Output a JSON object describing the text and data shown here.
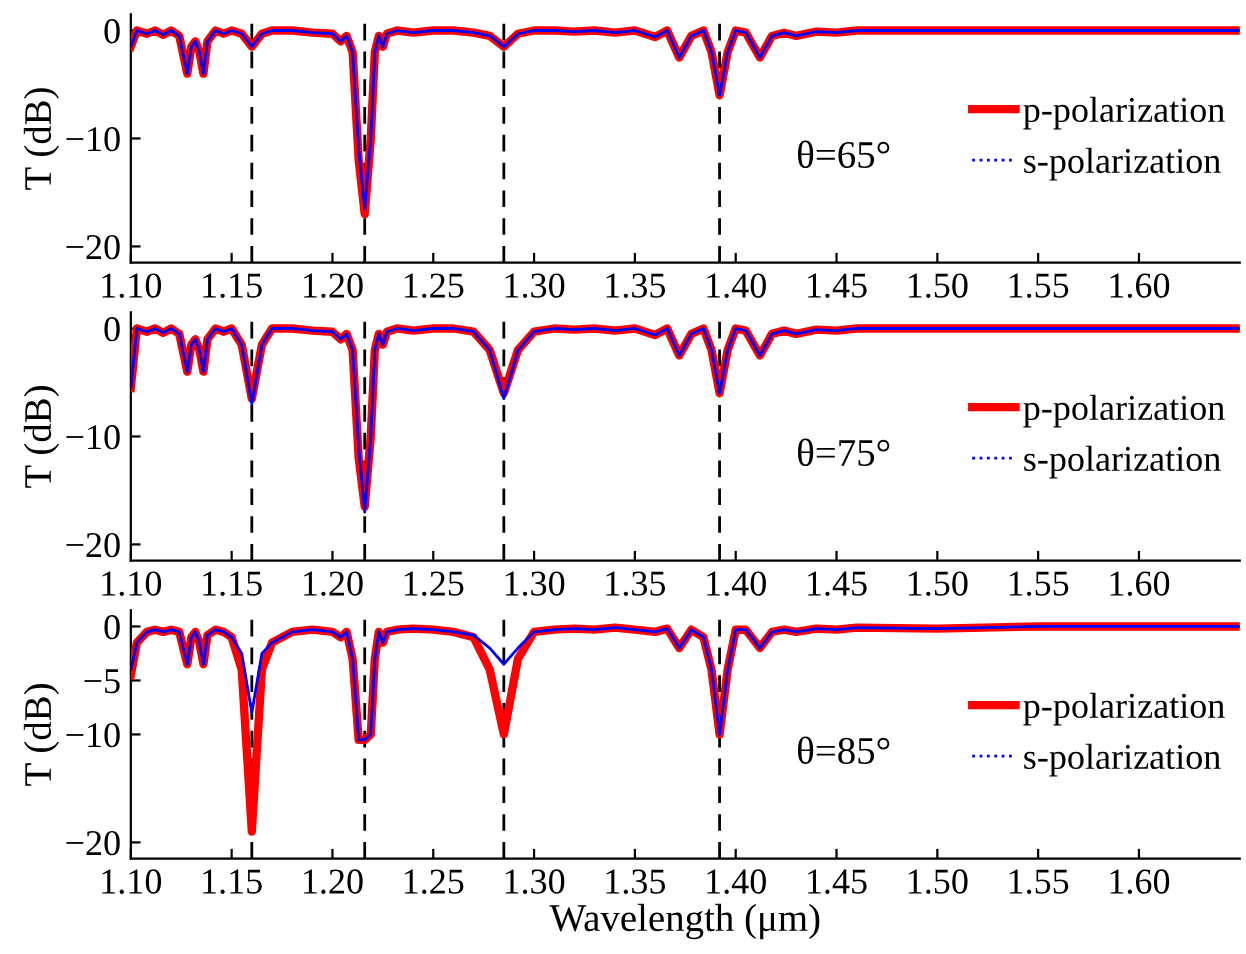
{
  "chart_data": [
    {
      "type": "line",
      "ylabel": "T (dB)",
      "annotations": [
        "θ=65°"
      ],
      "legend": "right",
      "grid": false,
      "line_style": "solid",
      "marker": "none",
      "x": [
        1.1,
        1.103,
        1.108,
        1.112,
        1.116,
        1.12,
        1.124,
        1.128,
        1.13,
        1.132,
        1.134,
        1.136,
        1.138,
        1.142,
        1.146,
        1.15,
        1.155,
        1.16,
        1.165,
        1.17,
        1.18,
        1.19,
        1.2,
        1.204,
        1.207,
        1.21,
        1.213,
        1.216,
        1.219,
        1.221,
        1.223,
        1.225,
        1.227,
        1.232,
        1.24,
        1.25,
        1.26,
        1.27,
        1.278,
        1.285,
        1.292,
        1.3,
        1.31,
        1.32,
        1.33,
        1.34,
        1.35,
        1.36,
        1.366,
        1.372,
        1.378,
        1.384,
        1.388,
        1.392,
        1.396,
        1.4,
        1.405,
        1.412,
        1.418,
        1.424,
        1.43,
        1.44,
        1.45,
        1.46,
        1.5,
        1.55,
        1.6,
        1.65
      ],
      "xlim": [
        1.1,
        1.65
      ],
      "xticks": [
        {
          "value": 1.1,
          "label": "1.10"
        },
        1.15,
        {
          "value": 1.2,
          "label": "1.20"
        },
        1.25,
        {
          "value": 1.3,
          "label": "1.30"
        },
        1.35,
        {
          "value": 1.4,
          "label": "1.40"
        },
        1.45,
        {
          "value": 1.5,
          "label": "1.50"
        },
        1.55,
        {
          "value": 1.6,
          "label": "1.60"
        }
      ],
      "ylim": [
        -21.5,
        1.5
      ],
      "yticks": [
        -20,
        -10,
        0
      ],
      "ref_lines": [
        {
          "axis": "x",
          "value": 1.16,
          "color": "#000000",
          "line_style": "dashed"
        },
        {
          "axis": "x",
          "value": 1.216,
          "color": "#000000",
          "line_style": "dashed"
        },
        {
          "axis": "x",
          "value": 1.285,
          "color": "#000000",
          "line_style": "dashed"
        },
        {
          "axis": "x",
          "value": 1.392,
          "color": "#000000",
          "line_style": "dashed"
        }
      ],
      "series": [
        {
          "name": "p-polarization",
          "color": "#ff0000",
          "values": [
            -1.5,
            0,
            -0.3,
            0,
            -0.4,
            0,
            -0.5,
            -4,
            -1.5,
            -1,
            -2,
            -4,
            -1,
            0,
            -0.3,
            0,
            -0.3,
            -1.5,
            -0.3,
            0,
            0,
            -0.2,
            -0.3,
            -1,
            -0.5,
            -2,
            -12,
            -17,
            -10,
            -2,
            -0.5,
            -1.5,
            -0.3,
            0,
            -0.2,
            0,
            0,
            -0.2,
            -0.5,
            -1.5,
            -0.3,
            0,
            0,
            -0.1,
            0,
            -0.2,
            0,
            -0.6,
            0,
            -2.5,
            -0.5,
            0,
            -2,
            -6,
            -2,
            0,
            -0.2,
            -2.5,
            -0.5,
            -0.2,
            -0.5,
            -0.1,
            -0.2,
            0,
            0,
            0,
            0,
            0
          ]
        },
        {
          "name": "s-polarization",
          "color": "#0000ff",
          "values": [
            -1.5,
            0,
            -0.3,
            0,
            -0.4,
            0,
            -0.5,
            -4,
            -1.5,
            -1,
            -2,
            -4,
            -1,
            0,
            -0.3,
            0,
            -0.3,
            -1.5,
            -0.3,
            0,
            0,
            -0.2,
            -0.3,
            -1,
            -0.5,
            -2,
            -11,
            -16.5,
            -10,
            -2,
            -0.5,
            -1.5,
            -0.3,
            0,
            -0.2,
            0,
            0,
            -0.2,
            -0.5,
            -1.5,
            -0.3,
            0,
            0,
            -0.1,
            0,
            -0.2,
            0,
            -0.6,
            0,
            -2.5,
            -0.5,
            0,
            -2,
            -6,
            -2,
            0,
            -0.2,
            -2.5,
            -0.5,
            -0.2,
            -0.5,
            -0.1,
            -0.2,
            0,
            0,
            0,
            0,
            0
          ]
        }
      ]
    },
    {
      "type": "line",
      "ylabel": "T (dB)",
      "annotations": [
        "θ=75°"
      ],
      "legend": "right",
      "grid": false,
      "line_style": "solid",
      "marker": "none",
      "x": [
        1.1,
        1.103,
        1.108,
        1.112,
        1.116,
        1.12,
        1.124,
        1.128,
        1.13,
        1.132,
        1.134,
        1.136,
        1.138,
        1.142,
        1.146,
        1.15,
        1.155,
        1.16,
        1.165,
        1.17,
        1.18,
        1.19,
        1.2,
        1.204,
        1.207,
        1.21,
        1.213,
        1.216,
        1.219,
        1.221,
        1.223,
        1.225,
        1.227,
        1.232,
        1.24,
        1.25,
        1.26,
        1.27,
        1.278,
        1.285,
        1.292,
        1.3,
        1.31,
        1.32,
        1.33,
        1.34,
        1.35,
        1.36,
        1.366,
        1.372,
        1.378,
        1.384,
        1.388,
        1.392,
        1.396,
        1.4,
        1.405,
        1.412,
        1.418,
        1.424,
        1.43,
        1.44,
        1.45,
        1.46,
        1.5,
        1.55,
        1.6,
        1.65
      ],
      "xlim": [
        1.1,
        1.65
      ],
      "xticks": [
        {
          "value": 1.1,
          "label": "1.10"
        },
        1.15,
        {
          "value": 1.2,
          "label": "1.20"
        },
        1.25,
        {
          "value": 1.3,
          "label": "1.30"
        },
        1.35,
        {
          "value": 1.4,
          "label": "1.40"
        },
        1.45,
        {
          "value": 1.5,
          "label": "1.50"
        },
        1.55,
        {
          "value": 1.6,
          "label": "1.60"
        }
      ],
      "ylim": [
        -21.5,
        1.5
      ],
      "yticks": [
        -20,
        -10,
        0
      ],
      "ref_lines": [
        {
          "axis": "x",
          "value": 1.16,
          "color": "#000000",
          "line_style": "dashed"
        },
        {
          "axis": "x",
          "value": 1.216,
          "color": "#000000",
          "line_style": "dashed"
        },
        {
          "axis": "x",
          "value": 1.285,
          "color": "#000000",
          "line_style": "dashed"
        },
        {
          "axis": "x",
          "value": 1.392,
          "color": "#000000",
          "line_style": "dashed"
        }
      ],
      "series": [
        {
          "name": "p-polarization",
          "color": "#ff0000",
          "values": [
            -5.5,
            0,
            -0.3,
            0,
            -0.4,
            0,
            -0.5,
            -4,
            -1.5,
            -1,
            -2,
            -4,
            -1,
            0,
            -0.3,
            0,
            -1.5,
            -6.5,
            -1.5,
            0,
            0,
            -0.2,
            -0.3,
            -1,
            -0.5,
            -2,
            -12,
            -16.5,
            -10,
            -2,
            -0.5,
            -1.5,
            -0.3,
            0,
            -0.2,
            0,
            0,
            -0.3,
            -2,
            -6,
            -2,
            -0.3,
            0,
            -0.1,
            0,
            -0.2,
            0,
            -0.6,
            0,
            -2.5,
            -0.5,
            0,
            -2,
            -6,
            -2,
            0,
            -0.2,
            -2.5,
            -0.5,
            -0.2,
            -0.5,
            -0.1,
            -0.2,
            0,
            0,
            0,
            0,
            0
          ]
        },
        {
          "name": "s-polarization",
          "color": "#0000ff",
          "values": [
            -5.5,
            0,
            -0.3,
            0,
            -0.4,
            0,
            -0.5,
            -4,
            -1.5,
            -1,
            -2,
            -4,
            -1,
            0,
            -0.3,
            0,
            -1.5,
            -7,
            -1.5,
            0,
            0,
            -0.2,
            -0.3,
            -1,
            -0.5,
            -2,
            -11,
            -17,
            -10,
            -2,
            -0.5,
            -1.5,
            -0.3,
            0,
            -0.2,
            0,
            0,
            -0.3,
            -2,
            -6.5,
            -2,
            -0.3,
            0,
            -0.1,
            0,
            -0.2,
            0,
            -0.6,
            0,
            -2.5,
            -0.5,
            0,
            -2,
            -6,
            -2,
            0,
            -0.2,
            -2.5,
            -0.5,
            -0.2,
            -0.5,
            -0.1,
            -0.2,
            0,
            0,
            0,
            0,
            0
          ]
        }
      ]
    },
    {
      "type": "line",
      "ylabel": "T (dB)",
      "xlabel": "Wavelength (μm)",
      "annotations": [
        "θ=85°"
      ],
      "legend": "right",
      "grid": false,
      "line_style": "solid",
      "marker": "none",
      "x": [
        1.1,
        1.103,
        1.108,
        1.112,
        1.116,
        1.12,
        1.124,
        1.128,
        1.13,
        1.132,
        1.134,
        1.136,
        1.138,
        1.142,
        1.146,
        1.15,
        1.155,
        1.16,
        1.165,
        1.17,
        1.18,
        1.19,
        1.2,
        1.204,
        1.207,
        1.21,
        1.213,
        1.216,
        1.219,
        1.221,
        1.223,
        1.225,
        1.227,
        1.232,
        1.24,
        1.25,
        1.26,
        1.27,
        1.278,
        1.285,
        1.292,
        1.3,
        1.31,
        1.32,
        1.33,
        1.34,
        1.35,
        1.36,
        1.366,
        1.372,
        1.378,
        1.384,
        1.388,
        1.392,
        1.396,
        1.4,
        1.405,
        1.412,
        1.418,
        1.424,
        1.43,
        1.44,
        1.45,
        1.46,
        1.5,
        1.55,
        1.6,
        1.65
      ],
      "xlim": [
        1.1,
        1.65
      ],
      "xticks": [
        {
          "value": 1.1,
          "label": "1.10"
        },
        1.15,
        {
          "value": 1.2,
          "label": "1.20"
        },
        1.25,
        {
          "value": 1.3,
          "label": "1.30"
        },
        1.35,
        {
          "value": 1.4,
          "label": "1.40"
        },
        1.45,
        {
          "value": 1.5,
          "label": "1.50"
        },
        1.55,
        {
          "value": 1.6,
          "label": "1.60"
        }
      ],
      "ylim": [
        -21.5,
        1.5
      ],
      "yticks": [
        -20,
        -10,
        -5,
        0
      ],
      "ref_lines": [
        {
          "axis": "x",
          "value": 1.16,
          "color": "#000000",
          "line_style": "dashed"
        },
        {
          "axis": "x",
          "value": 1.216,
          "color": "#000000",
          "line_style": "dashed"
        },
        {
          "axis": "x",
          "value": 1.285,
          "color": "#000000",
          "line_style": "dashed"
        },
        {
          "axis": "x",
          "value": 1.392,
          "color": "#000000",
          "line_style": "dashed"
        }
      ],
      "series": [
        {
          "name": "p-polarization",
          "color": "#ff0000",
          "values": [
            -4.5,
            -1.5,
            -0.5,
            -0.3,
            -0.5,
            -0.3,
            -0.5,
            -3.5,
            -1,
            -0.5,
            -1.5,
            -3.5,
            -0.8,
            -0.3,
            -0.5,
            -1,
            -4,
            -19,
            -4,
            -1.5,
            -0.5,
            -0.3,
            -0.5,
            -1,
            -0.5,
            -3,
            -10.5,
            -10.5,
            -10,
            -3,
            -0.5,
            -1.5,
            -0.5,
            -0.3,
            -0.2,
            -0.3,
            -0.5,
            -1,
            -4,
            -10,
            -3,
            -0.5,
            -0.3,
            -0.2,
            -0.3,
            -0.1,
            -0.3,
            -0.5,
            -0.2,
            -2,
            -0.3,
            -1,
            -4,
            -10,
            -4,
            -0.3,
            -0.3,
            -2,
            -0.5,
            -0.3,
            -0.5,
            -0.2,
            -0.3,
            -0.1,
            -0.2,
            0,
            0,
            0
          ]
        },
        {
          "name": "s-polarization",
          "color": "#0000ff",
          "values": [
            -4,
            -1.5,
            -0.5,
            -0.3,
            -0.5,
            -0.3,
            -0.5,
            -3.5,
            -1,
            -0.5,
            -1.5,
            -3.5,
            -0.8,
            -0.3,
            -0.5,
            -1,
            -2.5,
            -8,
            -2.5,
            -1.5,
            -0.5,
            -0.3,
            -0.5,
            -1,
            -0.5,
            -3,
            -10.5,
            -10.5,
            -10,
            -3,
            -0.5,
            -1.5,
            -0.5,
            -0.3,
            -0.2,
            -0.3,
            -0.5,
            -0.8,
            -2,
            -3.5,
            -2,
            -0.5,
            -0.3,
            -0.2,
            -0.3,
            -0.1,
            -0.3,
            -0.5,
            -0.2,
            -2,
            -0.3,
            -1,
            -4,
            -10,
            -4,
            -0.3,
            -0.3,
            -2,
            -0.5,
            -0.3,
            -0.5,
            -0.2,
            -0.3,
            -0.1,
            -0.2,
            0,
            0,
            0
          ]
        }
      ]
    }
  ]
}
